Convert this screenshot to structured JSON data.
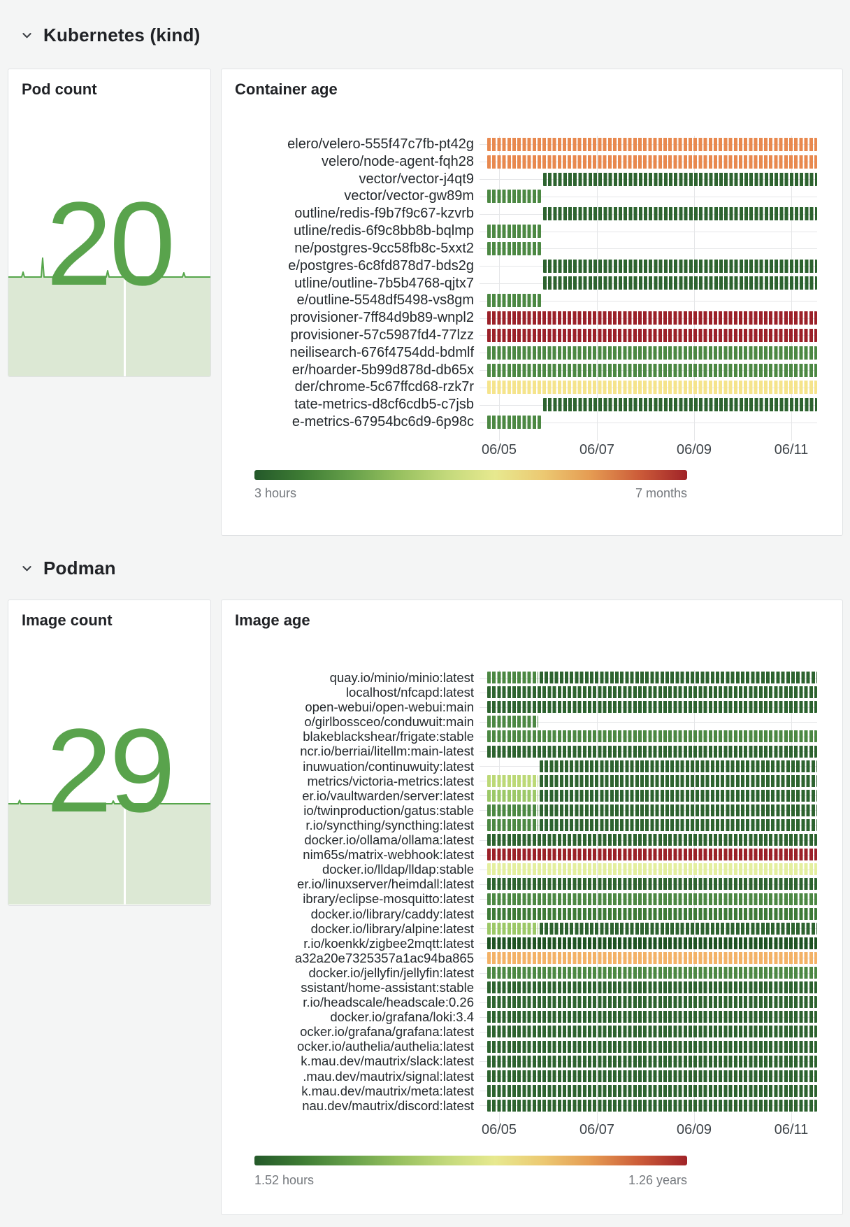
{
  "palette": {
    "darkestgreen": "#1e5322",
    "darkgreen": "#2d632f",
    "green2": "#3e7a37",
    "green": "#4c8843",
    "lightgreen": "#9cc868",
    "yellowgreen": "#bcd977",
    "paleyellow": "#e4ef9f",
    "yellow": "#f5e48c",
    "lightorange": "#f3b267",
    "orange": "#e8894f",
    "red": "#9b2129",
    "stat_green": "#59a34c",
    "spark_line": "#56a64b",
    "spark_fill": "#dce8d4",
    "legend_gradient": [
      "#24592a",
      "#3e7c34",
      "#66a04a",
      "#97c05f",
      "#c3d97b",
      "#e7e98f",
      "#ecc972",
      "#e59b52",
      "#cc5c39",
      "#a02328"
    ]
  },
  "sections": [
    {
      "title": "Kubernetes (kind)",
      "stat_panel": {
        "title": "Pod count",
        "value": "20",
        "sparkline": {
          "bumps": [
            [
              21,
              7
            ],
            [
              49,
              27
            ],
            [
              142,
              9
            ],
            [
              251,
              6
            ]
          ],
          "gap_x": 165
        }
      },
      "age_panel": {
        "title": "Container age",
        "type": "status-history",
        "x_ticks": [
          "06/05",
          "06/07",
          "06/09",
          "06/11"
        ],
        "legend_min": "3 hours",
        "legend_max": "7 months",
        "rows": [
          {
            "label": "elero/velero-555f47c7fb-pt42g",
            "segments": [
              [
                0,
                1,
                "orange"
              ]
            ]
          },
          {
            "label": "velero/node-agent-fqh28",
            "segments": [
              [
                0,
                1,
                "orange"
              ]
            ]
          },
          {
            "label": "vector/vector-j4qt9",
            "segments": [
              [
                0.169,
                1,
                "darkgreen"
              ]
            ]
          },
          {
            "label": "vector/vector-gw89m",
            "segments": [
              [
                0,
                0.163,
                "green"
              ]
            ]
          },
          {
            "label": "outline/redis-f9b7f9c67-kzvrb",
            "segments": [
              [
                0.169,
                1,
                "darkgreen"
              ]
            ]
          },
          {
            "label": "utline/redis-6f9c8bb8b-bqlmp",
            "segments": [
              [
                0,
                0.163,
                "green"
              ]
            ]
          },
          {
            "label": "ne/postgres-9cc58fb8c-5xxt2",
            "segments": [
              [
                0,
                0.163,
                "green"
              ]
            ]
          },
          {
            "label": "e/postgres-6c8fd878d7-bds2g",
            "segments": [
              [
                0.169,
                1,
                "darkgreen"
              ]
            ]
          },
          {
            "label": "utline/outline-7b5b4768-qjtx7",
            "segments": [
              [
                0.169,
                1,
                "darkgreen"
              ]
            ]
          },
          {
            "label": "e/outline-5548df5498-vs8gm",
            "segments": [
              [
                0,
                0.163,
                "green"
              ]
            ]
          },
          {
            "label": "provisioner-7ff84d9b89-wnpl2",
            "segments": [
              [
                0,
                1,
                "red"
              ]
            ]
          },
          {
            "label": "provisioner-57c5987fd4-77lzz",
            "segments": [
              [
                0,
                1,
                "red"
              ]
            ]
          },
          {
            "label": "neilisearch-676f4754dd-bdmlf",
            "segments": [
              [
                0,
                1,
                "green"
              ]
            ]
          },
          {
            "label": "er/hoarder-5b99d878d-db65x",
            "segments": [
              [
                0,
                1,
                "green"
              ]
            ]
          },
          {
            "label": "der/chrome-5c67ffcd68-rzk7r",
            "segments": [
              [
                0,
                1,
                "yellow"
              ]
            ]
          },
          {
            "label": "tate-metrics-d8cf6cdb5-c7jsb",
            "segments": [
              [
                0.169,
                1,
                "darkgreen"
              ]
            ]
          },
          {
            "label": "e-metrics-67954bc6d9-6p98c",
            "segments": [
              [
                0,
                0.163,
                "green"
              ]
            ]
          }
        ]
      }
    },
    {
      "title": "Podman",
      "stat_panel": {
        "title": "Image count",
        "value": "29",
        "sparkline": {
          "bumps": [
            [
              16,
              5
            ],
            [
              150,
              4
            ]
          ],
          "gap_x": 165
        }
      },
      "age_panel": {
        "title": "Image age",
        "type": "status-history",
        "x_ticks": [
          "06/05",
          "06/07",
          "06/09",
          "06/11"
        ],
        "legend_min": "1.52 hours",
        "legend_max": "1.26 years",
        "rows": [
          {
            "label": "quay.io/minio/minio:latest",
            "segments": [
              [
                0,
                0.155,
                "green"
              ],
              [
                0.158,
                1,
                "darkgreen"
              ]
            ]
          },
          {
            "label": "localhost/nfcapd:latest",
            "segments": [
              [
                0,
                1,
                "darkgreen"
              ]
            ]
          },
          {
            "label": "open-webui/open-webui:main",
            "segments": [
              [
                0,
                1,
                "darkgreen"
              ]
            ]
          },
          {
            "label": "o/girlbossceo/conduwuit:main",
            "segments": [
              [
                0,
                0.155,
                "green"
              ]
            ]
          },
          {
            "label": "blakeblackshear/frigate:stable",
            "segments": [
              [
                0,
                1,
                "green"
              ]
            ]
          },
          {
            "label": "ncr.io/berriai/litellm:main-latest",
            "segments": [
              [
                0,
                1,
                "darkgreen"
              ]
            ]
          },
          {
            "label": "inuwuation/continuwuity:latest",
            "segments": [
              [
                0.158,
                1,
                "darkgreen"
              ]
            ]
          },
          {
            "label": "metrics/victoria-metrics:latest",
            "segments": [
              [
                0,
                0.155,
                "yellowgreen"
              ],
              [
                0.158,
                1,
                "darkgreen"
              ]
            ]
          },
          {
            "label": "er.io/vaultwarden/server:latest",
            "segments": [
              [
                0,
                0.155,
                "lightgreen"
              ],
              [
                0.158,
                1,
                "darkgreen"
              ]
            ]
          },
          {
            "label": "io/twinproduction/gatus:stable",
            "segments": [
              [
                0,
                0.155,
                "green"
              ],
              [
                0.158,
                1,
                "darkgreen"
              ]
            ]
          },
          {
            "label": "r.io/syncthing/syncthing:latest",
            "segments": [
              [
                0,
                0.155,
                "green"
              ],
              [
                0.158,
                1,
                "darkgreen"
              ]
            ]
          },
          {
            "label": "docker.io/ollama/ollama:latest",
            "segments": [
              [
                0,
                1,
                "darkgreen"
              ]
            ]
          },
          {
            "label": "nim65s/matrix-webhook:latest",
            "segments": [
              [
                0,
                1,
                "red"
              ]
            ]
          },
          {
            "label": "docker.io/lldap/lldap:stable",
            "segments": [
              [
                0,
                1,
                "paleyellow"
              ]
            ]
          },
          {
            "label": "er.io/linuxserver/heimdall:latest",
            "segments": [
              [
                0,
                1,
                "darkgreen"
              ]
            ]
          },
          {
            "label": "ibrary/eclipse-mosquitto:latest",
            "segments": [
              [
                0,
                1,
                "green"
              ]
            ]
          },
          {
            "label": "docker.io/library/caddy:latest",
            "segments": [
              [
                0,
                1,
                "green2"
              ]
            ]
          },
          {
            "label": "docker.io/library/alpine:latest",
            "segments": [
              [
                0,
                0.155,
                "lightgreen"
              ],
              [
                0.158,
                1,
                "darkgreen"
              ]
            ]
          },
          {
            "label": "r.io/koenkk/zigbee2mqtt:latest",
            "segments": [
              [
                0,
                1,
                "darkestgreen"
              ]
            ]
          },
          {
            "label": "a32a20e7325357a1ac94ba865",
            "segments": [
              [
                0,
                1,
                "lightorange"
              ]
            ]
          },
          {
            "label": "docker.io/jellyfin/jellyfin:latest",
            "segments": [
              [
                0,
                1,
                "green"
              ]
            ]
          },
          {
            "label": "ssistant/home-assistant:stable",
            "segments": [
              [
                0,
                1,
                "darkgreen"
              ]
            ]
          },
          {
            "label": "r.io/headscale/headscale:0.26",
            "segments": [
              [
                0,
                1,
                "darkgreen"
              ]
            ]
          },
          {
            "label": "docker.io/grafana/loki:3.4",
            "segments": [
              [
                0,
                1,
                "darkgreen"
              ]
            ]
          },
          {
            "label": "ocker.io/grafana/grafana:latest",
            "segments": [
              [
                0,
                1,
                "darkgreen"
              ]
            ]
          },
          {
            "label": "ocker.io/authelia/authelia:latest",
            "segments": [
              [
                0,
                1,
                "darkgreen"
              ]
            ]
          },
          {
            "label": "k.mau.dev/mautrix/slack:latest",
            "segments": [
              [
                0,
                1,
                "darkgreen"
              ]
            ]
          },
          {
            "label": ".mau.dev/mautrix/signal:latest",
            "segments": [
              [
                0,
                1,
                "darkgreen"
              ]
            ]
          },
          {
            "label": "k.mau.dev/mautrix/meta:latest",
            "segments": [
              [
                0,
                1,
                "darkgreen"
              ]
            ]
          },
          {
            "label": "nau.dev/mautrix/discord:latest",
            "segments": [
              [
                0,
                1,
                "darkgreen"
              ]
            ]
          }
        ]
      }
    }
  ]
}
